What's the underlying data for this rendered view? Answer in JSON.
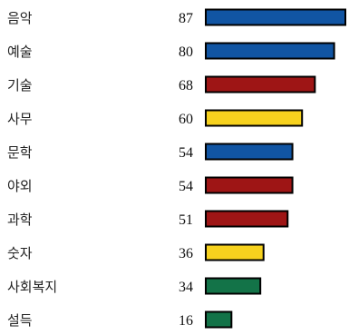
{
  "chart_data": {
    "type": "bar",
    "orientation": "horizontal",
    "title": "",
    "xlabel": "",
    "ylabel": "",
    "categories": [
      "음악",
      "예술",
      "기술",
      "사무",
      "문학",
      "야외",
      "과학",
      "숫자",
      "사회복지",
      "설득"
    ],
    "values": [
      87,
      80,
      68,
      60,
      54,
      54,
      51,
      36,
      34,
      16
    ],
    "bar_colors": [
      "#1155a3",
      "#1155a3",
      "#9e1515",
      "#f7d21e",
      "#1155a3",
      "#9e1515",
      "#9e1515",
      "#f7d21e",
      "#137348",
      "#137348"
    ],
    "xlim": [
      0,
      87
    ],
    "grid": false,
    "legend": "none"
  }
}
